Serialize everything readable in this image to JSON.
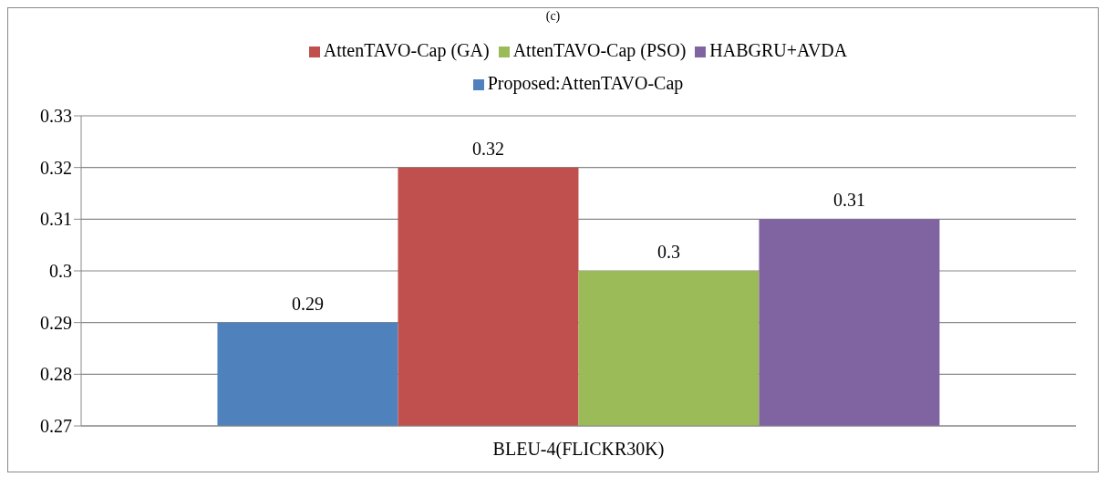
{
  "chart_data": {
    "type": "bar",
    "title": "(c)",
    "categories": [
      "BLEU-4(FLICKR30K)"
    ],
    "series": [
      {
        "name": "Proposed:AttenTAVO-Cap",
        "color": "#4f81bd",
        "values": [
          0.29
        ]
      },
      {
        "name": "AttenTAVO-Cap (GA)",
        "color": "#c0504d",
        "values": [
          0.32
        ]
      },
      {
        "name": "AttenTAVO-Cap (PSO)",
        "color": "#9bbb59",
        "values": [
          0.3
        ]
      },
      {
        "name": "HABGRU+AVDA",
        "color": "#8064a2",
        "values": [
          0.31
        ]
      }
    ],
    "ylim": [
      0.27,
      0.33
    ],
    "yticks": [
      0.27,
      0.28,
      0.29,
      0.3,
      0.31,
      0.32,
      0.33
    ],
    "grid": "y",
    "legend": "top",
    "data_labels": true
  }
}
